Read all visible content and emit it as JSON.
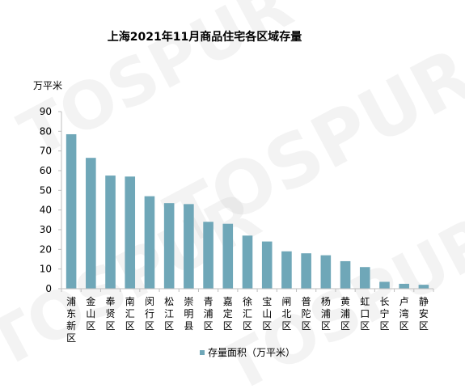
{
  "chart_data": {
    "type": "bar",
    "title": "上海2021年11月商品住宅各区域存量",
    "ylabel": "万平米",
    "xlabel": "",
    "ylim": [
      0,
      90
    ],
    "yticks": [
      0,
      10,
      20,
      30,
      40,
      50,
      60,
      70,
      80,
      90
    ],
    "grid": false,
    "legend_position": "bottom",
    "categories": [
      "浦东新区",
      "金山区",
      "奉贤区",
      "南汇区",
      "闵行区",
      "松江区",
      "崇明县",
      "青浦区",
      "嘉定区",
      "徐汇区",
      "宝山区",
      "闸北区",
      "普陀区",
      "杨浦区",
      "黄浦区",
      "虹口区",
      "长宁区",
      "卢湾区",
      "静安区"
    ],
    "series": [
      {
        "name": "存量面积（万平米）",
        "values": [
          78.5,
          66.5,
          57.5,
          57,
          47,
          43.5,
          43,
          34,
          33,
          27,
          24,
          19,
          18,
          17,
          14,
          11,
          3.5,
          2.5,
          2
        ]
      }
    ],
    "colors": {
      "bar": "#6fa7b8",
      "axis": "#bfbfbf",
      "text": "#000000"
    }
  }
}
